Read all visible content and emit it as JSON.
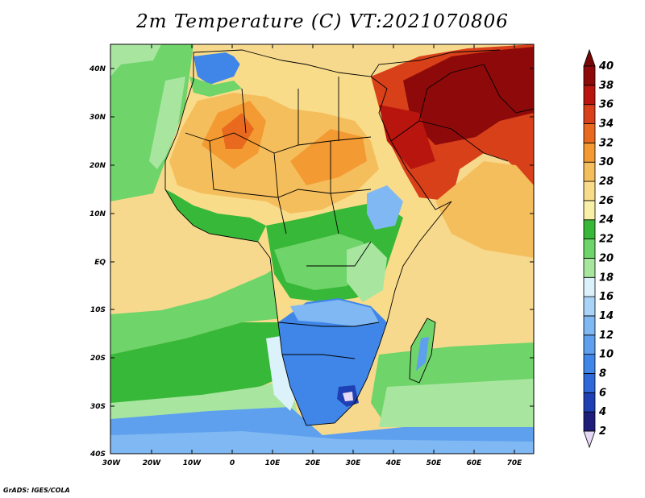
{
  "title": "2m Temperature (C) VT:2021070806",
  "credit": "GrADS: IGES/COLA",
  "lat_labels": [
    "40N",
    "30N",
    "20N",
    "10N",
    "EQ",
    "10S",
    "20S",
    "30S",
    "40S"
  ],
  "lon_labels": [
    "30W",
    "20W",
    "10W",
    "0",
    "10E",
    "20E",
    "30E",
    "40E",
    "50E",
    "60E",
    "70E"
  ],
  "colorbar": {
    "labels": [
      "2",
      "4",
      "6",
      "8",
      "10",
      "12",
      "14",
      "16",
      "18",
      "20",
      "22",
      "24",
      "26",
      "28",
      "30",
      "32",
      "34",
      "36",
      "38",
      "40"
    ],
    "colors": [
      "#e6d9f5",
      "#1e1e7a",
      "#1f3fb4",
      "#2f68d8",
      "#3f86e8",
      "#5ea0ee",
      "#7fb8f2",
      "#a9d3f7",
      "#dcf2fa",
      "#a8e6a0",
      "#6fd46a",
      "#38b838",
      "#f9f0a8",
      "#f9dc8a",
      "#f5be5c",
      "#f39a32",
      "#e96a1f",
      "#d8401a",
      "#b8150e",
      "#8e0a0a",
      "#760606"
    ]
  },
  "map": {
    "colors": {
      "ocean_warm": "#f7d98e",
      "ocean_mild": "#6fd46a",
      "ocean_cool": "#a8e6a0",
      "ocean_cold": "#5ea0ee",
      "land_hot": "#f39a32",
      "land_very_hot": "#d8401a",
      "land_extreme": "#8e0a0a",
      "land_warm": "#f9dc8a",
      "land_green": "#38b838",
      "land_cool": "#3f86e8",
      "mountain": "#dcf2fa"
    }
  }
}
